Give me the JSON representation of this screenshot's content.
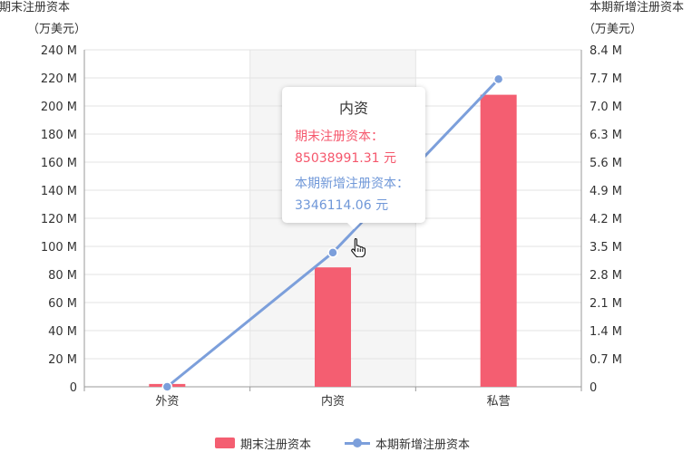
{
  "chart_data": {
    "type": "bar",
    "categories": [
      "外资",
      "内资",
      "私营"
    ],
    "highlighted_category": "内资",
    "left_axis": {
      "title_line1": "期末注册资本",
      "title_line2": "（万美元）",
      "ylim": [
        0,
        240
      ],
      "ticks": [
        "0",
        "20 M",
        "40 M",
        "60 M",
        "80 M",
        "100 M",
        "120 M",
        "140 M",
        "160 M",
        "180 M",
        "200 M",
        "220 M",
        "240 M"
      ]
    },
    "right_axis": {
      "title_line1": "本期新增注册资本",
      "title_line2": "（万美元）",
      "ylim": [
        0,
        8.4
      ],
      "ticks": [
        "0",
        "0.7 M",
        "1.4 M",
        "2.1 M",
        "2.8 M",
        "3.5 M",
        "4.2 M",
        "4.9 M",
        "5.6 M",
        "6.3 M",
        "7.0 M",
        "7.7 M",
        "8.4 M"
      ]
    },
    "series": [
      {
        "name": "期末注册资本",
        "type": "bar",
        "axis": "left",
        "color": "#f45e71",
        "values": [
          2,
          85.04,
          208
        ]
      },
      {
        "name": "本期新增注册资本",
        "type": "line",
        "axis": "right",
        "color": "#7c9fdb",
        "values": [
          0,
          3.346,
          7.67
        ]
      }
    ],
    "grid": true,
    "legend_position": "bottom"
  },
  "tooltip": {
    "title": "内资",
    "line1_label": "期末注册资本：",
    "line1_value": "85038991.31 元",
    "line2_label": "本期新增注册资本：",
    "line2_value": "3346114.06 元"
  },
  "legend": {
    "bar_label": "期末注册资本",
    "line_label": "本期新增注册资本"
  }
}
